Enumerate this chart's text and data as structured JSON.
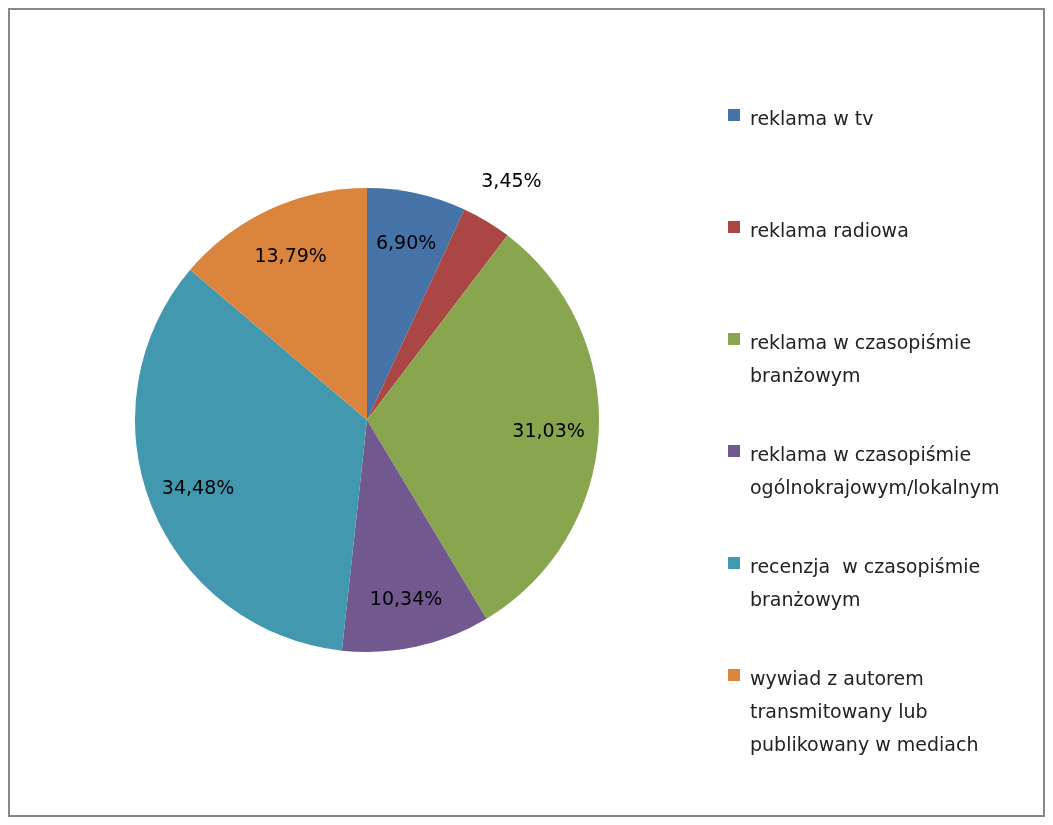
{
  "chart_data": {
    "type": "pie",
    "categories": [
      "reklama w tv",
      "reklama radiowa",
      "reklama w czasopiśmie branżowym",
      "reklama w czasopiśmie ogólnokrajowym/lokalnym",
      "recenzja  w czasopiśmie branżowym",
      "wywiad z autorem transmitowany lub publikowany w mediach"
    ],
    "values": [
      6.9,
      3.45,
      31.03,
      10.34,
      34.48,
      13.79
    ],
    "value_labels": [
      "6,90%",
      "3,45%",
      "31,03%",
      "10,34%",
      "34,48%",
      "13,79%"
    ],
    "colors": [
      "#4572a7",
      "#aa4643",
      "#89a54e",
      "#71588f",
      "#4198af",
      "#db843d"
    ],
    "legend": "right"
  }
}
